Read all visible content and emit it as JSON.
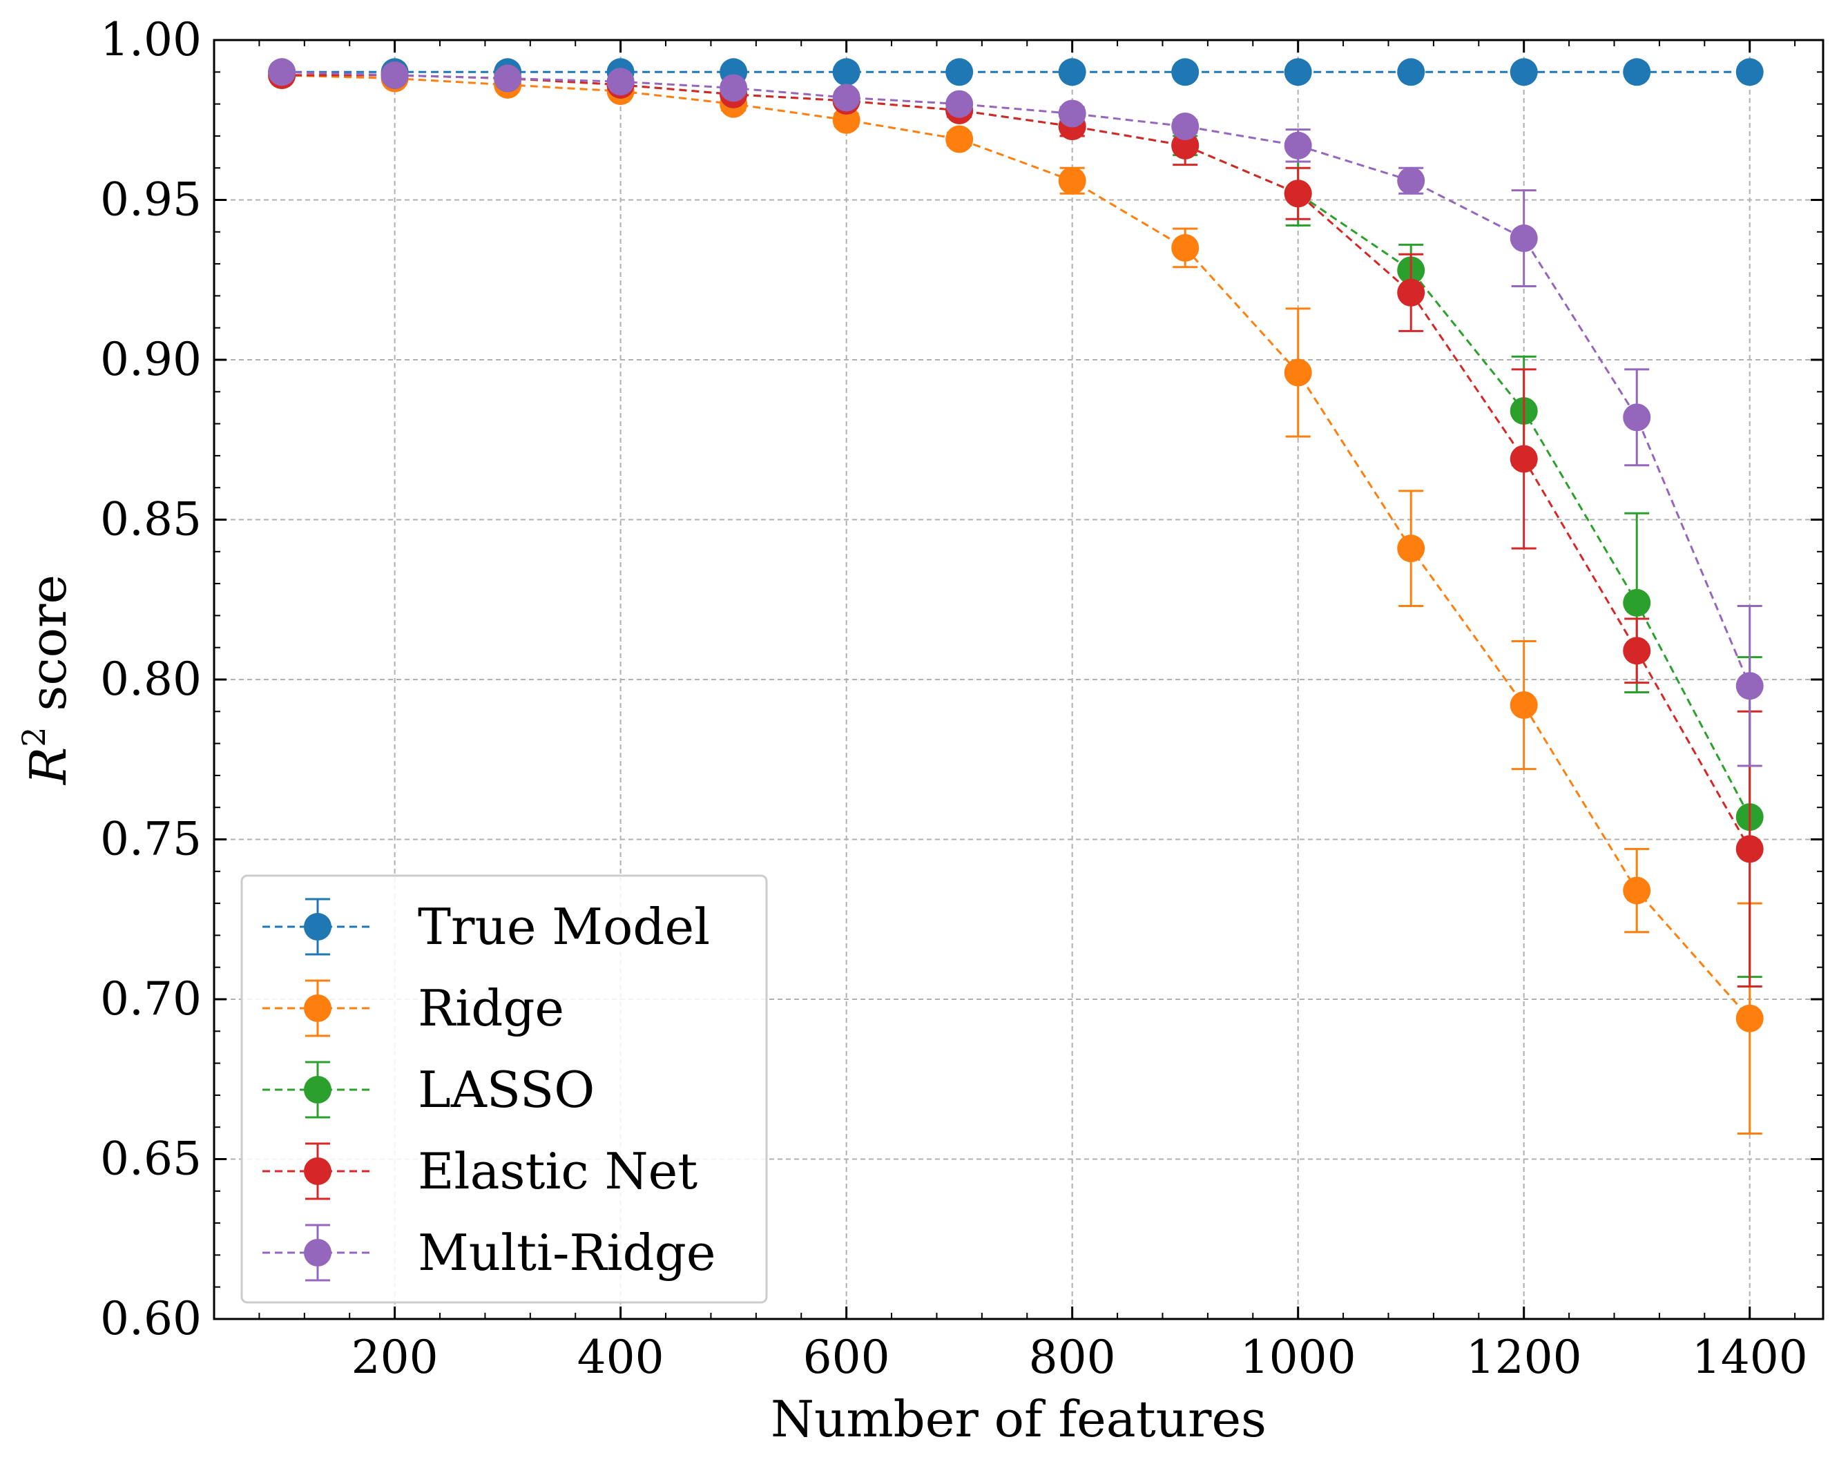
{
  "chart_data": {
    "type": "line",
    "xlabel": "Number of features",
    "ylabel_base": "R",
    "ylabel_sup": "2",
    "ylabel_rest": " score",
    "xlim": [
      40,
      1465
    ],
    "ylim": [
      0.6,
      1.0
    ],
    "x_ticks": [
      200,
      400,
      600,
      800,
      1000,
      1200,
      1400
    ],
    "y_ticks": [
      0.6,
      0.65,
      0.7,
      0.75,
      0.8,
      0.85,
      0.9,
      0.95,
      1.0
    ],
    "y_tick_labels": [
      "0.60",
      "0.65",
      "0.70",
      "0.75",
      "0.80",
      "0.85",
      "0.90",
      "0.95",
      "1.00"
    ],
    "grid": true,
    "legend_position": "lower-left",
    "x": [
      100,
      200,
      300,
      400,
      500,
      600,
      700,
      800,
      900,
      1000,
      1100,
      1200,
      1300,
      1400
    ],
    "series": [
      {
        "name": "True Model",
        "color": "#1f77b4",
        "values": [
          0.99,
          0.99,
          0.99,
          0.99,
          0.99,
          0.99,
          0.99,
          0.99,
          0.99,
          0.99,
          0.99,
          0.99,
          0.99,
          0.99
        ],
        "errors": [
          0,
          0,
          0,
          0,
          0,
          0,
          0,
          0,
          0,
          0,
          0,
          0,
          0,
          0
        ]
      },
      {
        "name": "Ridge",
        "color": "#ff7f0e",
        "values": [
          0.989,
          0.988,
          0.986,
          0.984,
          0.98,
          0.975,
          0.969,
          0.956,
          0.935,
          0.896,
          0.841,
          0.792,
          0.734,
          0.694
        ],
        "errors": [
          0.001,
          0.001,
          0.001,
          0.001,
          0.002,
          0.002,
          0.002,
          0.004,
          0.006,
          0.02,
          0.018,
          0.02,
          0.013,
          0.036
        ]
      },
      {
        "name": "LASSO",
        "color": "#2ca02c",
        "values": [
          0.989,
          0.989,
          0.988,
          0.986,
          0.983,
          0.981,
          0.978,
          0.973,
          0.967,
          0.952,
          0.928,
          0.884,
          0.824,
          0.757
        ],
        "errors": [
          0.001,
          0.001,
          0.001,
          0.001,
          0.001,
          0.001,
          0.002,
          0.003,
          0.003,
          0.01,
          0.008,
          0.017,
          0.028,
          0.05
        ]
      },
      {
        "name": "Elastic Net",
        "color": "#d62728",
        "values": [
          0.989,
          0.989,
          0.988,
          0.986,
          0.983,
          0.981,
          0.978,
          0.973,
          0.967,
          0.952,
          0.921,
          0.869,
          0.809,
          0.747
        ],
        "errors": [
          0.001,
          0.001,
          0.001,
          0.001,
          0.001,
          0.001,
          0.002,
          0.003,
          0.006,
          0.008,
          0.012,
          0.028,
          0.01,
          0.043
        ]
      },
      {
        "name": "Multi-Ridge",
        "color": "#9467bd",
        "values": [
          0.99,
          0.989,
          0.988,
          0.987,
          0.985,
          0.982,
          0.98,
          0.977,
          0.973,
          0.967,
          0.956,
          0.938,
          0.882,
          0.798
        ],
        "errors": [
          0.001,
          0.001,
          0.001,
          0.001,
          0.001,
          0.001,
          0.001,
          0.002,
          0.002,
          0.005,
          0.004,
          0.015,
          0.015,
          0.025
        ]
      }
    ]
  }
}
